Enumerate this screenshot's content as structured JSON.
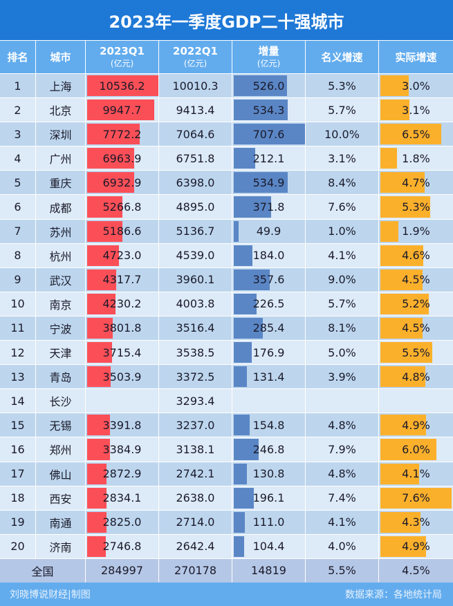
{
  "title": "2023年一季度GDP二十强城市",
  "headers": {
    "rank": "排名",
    "city": "城市",
    "q1_2023": "2023Q1",
    "q1_2023_unit": "(亿元)",
    "q1_2022": "2022Q1",
    "q1_2022_unit": "(亿元)",
    "increase": "增量",
    "increase_unit": "(亿元)",
    "nominal": "名义增速",
    "real": "实际增速"
  },
  "colors": {
    "title_bg": "#1e78d6",
    "header_bg": "#62acee",
    "bar_2023": "#fb4f57",
    "bar_increase": "#5a86c5",
    "bar_real": "#fbb02b",
    "row_odd": "#bdd6ee",
    "row_even": "#ddeaf7",
    "total_bg": "#b5c7e6"
  },
  "rows": [
    {
      "rank": "1",
      "city": "上海",
      "q1_2023": "10536.2",
      "q1_2022": "10010.3",
      "increase": "526.0",
      "nominal": "5.3%",
      "real": "3.0%"
    },
    {
      "rank": "2",
      "city": "北京",
      "q1_2023": "9947.7",
      "q1_2022": "9413.4",
      "increase": "534.3",
      "nominal": "5.7%",
      "real": "3.1%"
    },
    {
      "rank": "3",
      "city": "深圳",
      "q1_2023": "7772.2",
      "q1_2022": "7064.6",
      "increase": "707.6",
      "nominal": "10.0%",
      "real": "6.5%"
    },
    {
      "rank": "4",
      "city": "广州",
      "q1_2023": "6963.9",
      "q1_2022": "6751.8",
      "increase": "212.1",
      "nominal": "3.1%",
      "real": "1.8%"
    },
    {
      "rank": "5",
      "city": "重庆",
      "q1_2023": "6932.9",
      "q1_2022": "6398.0",
      "increase": "534.9",
      "nominal": "8.4%",
      "real": "4.7%"
    },
    {
      "rank": "6",
      "city": "成都",
      "q1_2023": "5266.8",
      "q1_2022": "4895.0",
      "increase": "371.8",
      "nominal": "7.6%",
      "real": "5.3%"
    },
    {
      "rank": "7",
      "city": "苏州",
      "q1_2023": "5186.6",
      "q1_2022": "5136.7",
      "increase": "49.9",
      "nominal": "1.0%",
      "real": "1.9%"
    },
    {
      "rank": "8",
      "city": "杭州",
      "q1_2023": "4723.0",
      "q1_2022": "4539.0",
      "increase": "184.0",
      "nominal": "4.1%",
      "real": "4.6%"
    },
    {
      "rank": "9",
      "city": "武汉",
      "q1_2023": "4317.7",
      "q1_2022": "3960.1",
      "increase": "357.6",
      "nominal": "9.0%",
      "real": "4.5%"
    },
    {
      "rank": "10",
      "city": "南京",
      "q1_2023": "4230.2",
      "q1_2022": "4003.8",
      "increase": "226.5",
      "nominal": "5.7%",
      "real": "5.2%"
    },
    {
      "rank": "11",
      "city": "宁波",
      "q1_2023": "3801.8",
      "q1_2022": "3516.4",
      "increase": "285.4",
      "nominal": "8.1%",
      "real": "4.5%"
    },
    {
      "rank": "12",
      "city": "天津",
      "q1_2023": "3715.4",
      "q1_2022": "3538.5",
      "increase": "176.9",
      "nominal": "5.0%",
      "real": "5.5%"
    },
    {
      "rank": "13",
      "city": "青岛",
      "q1_2023": "3503.9",
      "q1_2022": "3372.5",
      "increase": "131.4",
      "nominal": "3.9%",
      "real": "4.8%"
    },
    {
      "rank": "14",
      "city": "长沙",
      "q1_2023": "",
      "q1_2022": "3293.4",
      "increase": "",
      "nominal": "",
      "real": ""
    },
    {
      "rank": "15",
      "city": "无锡",
      "q1_2023": "3391.8",
      "q1_2022": "3237.0",
      "increase": "154.8",
      "nominal": "4.8%",
      "real": "4.9%"
    },
    {
      "rank": "16",
      "city": "郑州",
      "q1_2023": "3384.9",
      "q1_2022": "3138.1",
      "increase": "246.8",
      "nominal": "7.9%",
      "real": "6.0%"
    },
    {
      "rank": "17",
      "city": "佛山",
      "q1_2023": "2872.9",
      "q1_2022": "2742.1",
      "increase": "130.8",
      "nominal": "4.8%",
      "real": "4.1%"
    },
    {
      "rank": "18",
      "city": "西安",
      "q1_2023": "2834.1",
      "q1_2022": "2638.0",
      "increase": "196.1",
      "nominal": "7.4%",
      "real": "7.6%"
    },
    {
      "rank": "19",
      "city": "南通",
      "q1_2023": "2825.0",
      "q1_2022": "2714.0",
      "increase": "111.0",
      "nominal": "4.1%",
      "real": "4.3%"
    },
    {
      "rank": "20",
      "city": "济南",
      "q1_2023": "2746.8",
      "q1_2022": "2642.4",
      "increase": "104.4",
      "nominal": "4.0%",
      "real": "4.9%"
    }
  ],
  "total": {
    "label": "全国",
    "q1_2023": "284997",
    "q1_2022": "270178",
    "increase": "14819",
    "nominal": "5.5%",
    "real": "4.5%"
  },
  "footer": {
    "left": "刘晓博说财经|制图",
    "right": "数据来源：各地统计局"
  },
  "chart_data": {
    "type": "table",
    "title": "2023年一季度GDP二十强城市",
    "columns": [
      "排名",
      "城市",
      "2023Q1(亿元)",
      "2022Q1(亿元)",
      "增量(亿元)",
      "名义增速",
      "实际增速"
    ],
    "categories": [
      "上海",
      "北京",
      "深圳",
      "广州",
      "重庆",
      "成都",
      "苏州",
      "杭州",
      "武汉",
      "南京",
      "宁波",
      "天津",
      "青岛",
      "长沙",
      "无锡",
      "郑州",
      "佛山",
      "西安",
      "南通",
      "济南"
    ],
    "series": [
      {
        "name": "2023Q1(亿元)",
        "values": [
          10536.2,
          9947.7,
          7772.2,
          6963.9,
          6932.9,
          5266.8,
          5186.6,
          4723.0,
          4317.7,
          4230.2,
          3801.8,
          3715.4,
          3503.9,
          null,
          3391.8,
          3384.9,
          2872.9,
          2834.1,
          2825.0,
          2746.8
        ]
      },
      {
        "name": "2022Q1(亿元)",
        "values": [
          10010.3,
          9413.4,
          7064.6,
          6751.8,
          6398.0,
          4895.0,
          5136.7,
          4539.0,
          3960.1,
          4003.8,
          3516.4,
          3538.5,
          3372.5,
          3293.4,
          3237.0,
          3138.1,
          2742.1,
          2638.0,
          2714.0,
          2642.4
        ]
      },
      {
        "name": "增量(亿元)",
        "values": [
          526.0,
          534.3,
          707.6,
          212.1,
          534.9,
          371.8,
          49.9,
          184.0,
          357.6,
          226.5,
          285.4,
          176.9,
          131.4,
          null,
          154.8,
          246.8,
          130.8,
          196.1,
          111.0,
          104.4
        ]
      },
      {
        "name": "名义增速(%)",
        "values": [
          5.3,
          5.7,
          10.0,
          3.1,
          8.4,
          7.6,
          1.0,
          4.1,
          9.0,
          5.7,
          8.1,
          5.0,
          3.9,
          null,
          4.8,
          7.9,
          4.8,
          7.4,
          4.1,
          4.0
        ]
      },
      {
        "name": "实际增速(%)",
        "values": [
          3.0,
          3.1,
          6.5,
          1.8,
          4.7,
          5.3,
          1.9,
          4.6,
          4.5,
          5.2,
          4.5,
          5.5,
          4.8,
          null,
          4.9,
          6.0,
          4.1,
          7.6,
          4.3,
          4.9
        ]
      }
    ],
    "totals": {
      "label": "全国",
      "2023Q1": 284997,
      "2022Q1": 270178,
      "增量": 14819,
      "名义增速": 5.5,
      "实际增速": 4.5
    },
    "source": "数据来源：各地统计局"
  }
}
